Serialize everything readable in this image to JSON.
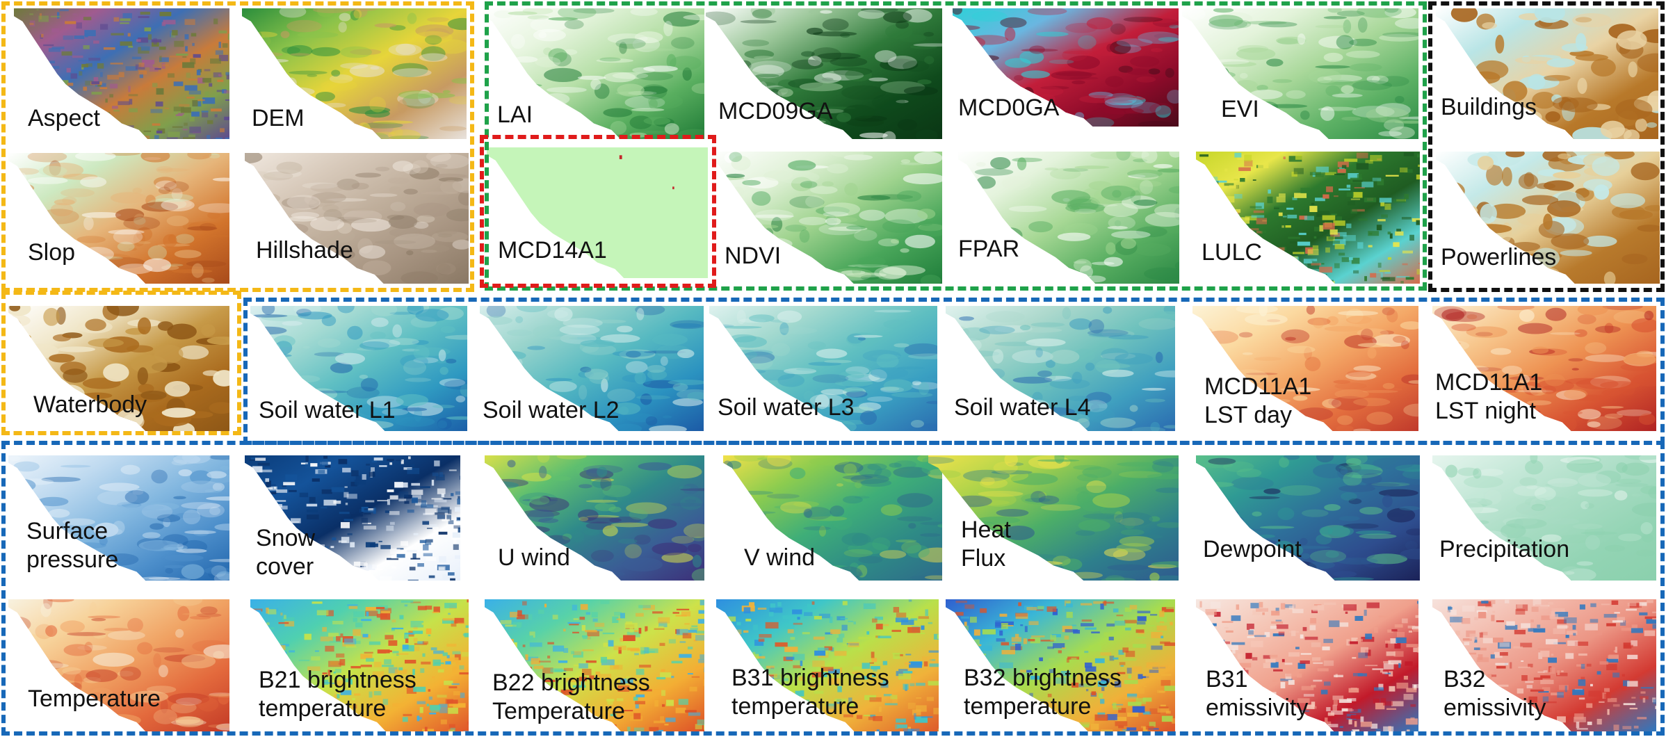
{
  "colors": {
    "group_yellow": "#f4b816",
    "group_green": "#1fa24a",
    "group_red": "#e01b1b",
    "group_black": "#111111",
    "group_blue": "#1768b8"
  },
  "tiles": [
    {
      "id": "aspect",
      "label": [
        "Aspect"
      ]
    },
    {
      "id": "dem",
      "label": [
        "DEM"
      ]
    },
    {
      "id": "lai",
      "label": [
        "LAI"
      ]
    },
    {
      "id": "mcd09ga",
      "label": [
        "MCD09GA"
      ]
    },
    {
      "id": "mcd0ga",
      "label": [
        "MCD0GA"
      ]
    },
    {
      "id": "evi",
      "label": [
        "EVI"
      ]
    },
    {
      "id": "buildings",
      "label": [
        "Buildings"
      ]
    },
    {
      "id": "slop",
      "label": [
        "Slop"
      ]
    },
    {
      "id": "hillshade",
      "label": [
        "Hillshade"
      ]
    },
    {
      "id": "mcd14a1",
      "label": [
        "MCD14A1"
      ]
    },
    {
      "id": "ndvi",
      "label": [
        "NDVI"
      ]
    },
    {
      "id": "fpar",
      "label": [
        "FPAR"
      ]
    },
    {
      "id": "lulc",
      "label": [
        "LULC"
      ]
    },
    {
      "id": "powerlines",
      "label": [
        "Powerlines"
      ]
    },
    {
      "id": "waterbody",
      "label": [
        "Waterbody"
      ]
    },
    {
      "id": "soil1",
      "label": [
        "Soil water L1"
      ]
    },
    {
      "id": "soil2",
      "label": [
        "Soil water L2"
      ]
    },
    {
      "id": "soil3",
      "label": [
        "Soil water L3"
      ]
    },
    {
      "id": "soil4",
      "label": [
        "Soil water L4"
      ]
    },
    {
      "id": "lstday",
      "label": [
        "MCD11A1",
        "LST day"
      ]
    },
    {
      "id": "lstnight",
      "label": [
        "MCD11A1",
        "LST night"
      ]
    },
    {
      "id": "sp",
      "label": [
        "Surface",
        "pressure"
      ]
    },
    {
      "id": "snow",
      "label": [
        "Snow",
        "cover"
      ]
    },
    {
      "id": "uwind",
      "label": [
        "U wind"
      ]
    },
    {
      "id": "vwind",
      "label": [
        "V wind"
      ]
    },
    {
      "id": "heat",
      "label": [
        "Heat",
        "Flux"
      ]
    },
    {
      "id": "dew",
      "label": [
        "Dewpoint"
      ]
    },
    {
      "id": "precip",
      "label": [
        "Precipitation"
      ]
    },
    {
      "id": "temp",
      "label": [
        "Temperature"
      ]
    },
    {
      "id": "b21",
      "label": [
        "B21 brightness",
        "temperature"
      ]
    },
    {
      "id": "b22",
      "label": [
        "B22 brightness",
        "Temperature"
      ]
    },
    {
      "id": "b31",
      "label": [
        "B31 brightness",
        "temperature"
      ]
    },
    {
      "id": "b32",
      "label": [
        "B32 brightness",
        "temperature"
      ]
    },
    {
      "id": "b31e",
      "label": [
        "B31",
        "emissivity"
      ]
    },
    {
      "id": "b32e",
      "label": [
        "B32",
        "emissivity"
      ]
    }
  ]
}
